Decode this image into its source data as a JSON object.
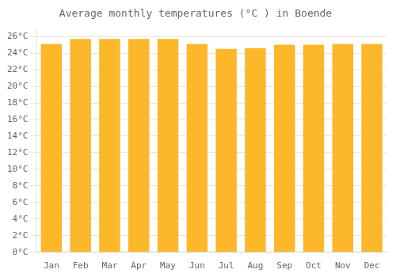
{
  "chart_data": {
    "type": "bar",
    "title": "Average monthly temperatures (°C ) in Boende",
    "categories": [
      "Jan",
      "Feb",
      "Mar",
      "Apr",
      "May",
      "Jun",
      "Jul",
      "Aug",
      "Sep",
      "Oct",
      "Nov",
      "Dec"
    ],
    "values": [
      25.1,
      25.7,
      25.7,
      25.7,
      25.7,
      25.1,
      24.5,
      24.6,
      25.0,
      25.0,
      25.1,
      25.1
    ],
    "color": "#FDB72A",
    "ylim": [
      0,
      27
    ],
    "yticks": [
      {
        "value": 0,
        "label": "0°C"
      },
      {
        "value": 2,
        "label": "2°C"
      },
      {
        "value": 4,
        "label": "4°C"
      },
      {
        "value": 6,
        "label": "6°C"
      },
      {
        "value": 8,
        "label": "8°C"
      },
      {
        "value": 10,
        "label": "10°C"
      },
      {
        "value": 12,
        "label": "12°C"
      },
      {
        "value": 14,
        "label": "14°C"
      },
      {
        "value": 16,
        "label": "16°C"
      },
      {
        "value": 18,
        "label": "18°C"
      },
      {
        "value": 20,
        "label": "20°C"
      },
      {
        "value": 22,
        "label": "22°C"
      },
      {
        "value": 24,
        "label": "24°C"
      },
      {
        "value": 26,
        "label": "26°C"
      }
    ],
    "grid": true
  }
}
